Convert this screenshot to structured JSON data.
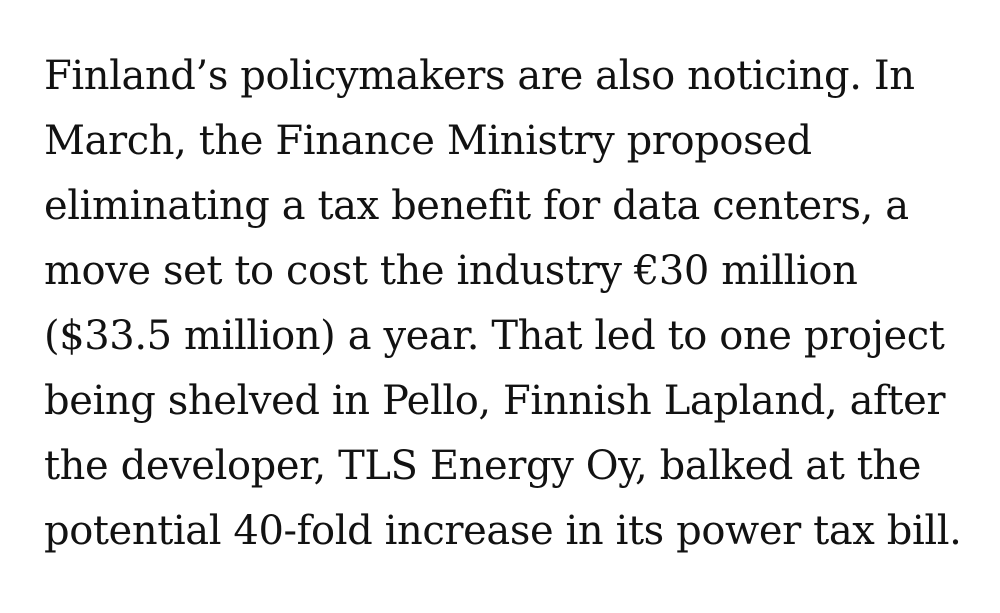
{
  "article": {
    "lines": [
      "Finland’s policymakers are also noticing. In",
      "March, the Finance Ministry proposed",
      "eliminating a tax benefit for data centers, a",
      "move set to cost the industry €30 million",
      "($33.5 million) a year. That led to one project",
      "being shelved in Pello, Finnish Lapland, after",
      "the developer, TLS Energy Oy, balked at the",
      "potential 40-fold increase in its power tax bill."
    ]
  },
  "colors": {
    "text": "#121212",
    "background": "#ffffff"
  }
}
